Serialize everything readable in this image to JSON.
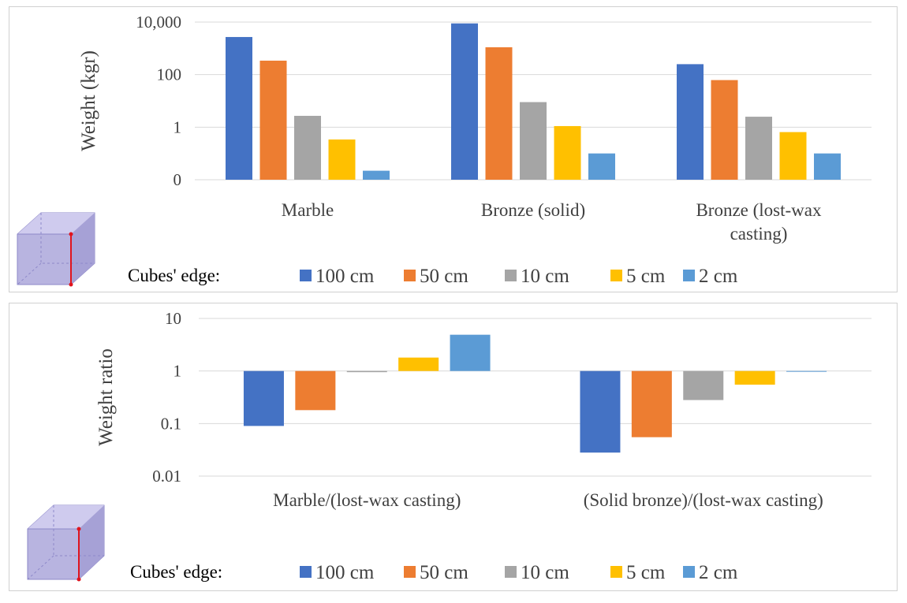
{
  "chart_data": [
    {
      "type": "bar",
      "scale": "log",
      "title": "",
      "xlabel": "",
      "ylabel": "Weight (kgr)",
      "ylim": [
        0.01,
        10000
      ],
      "yticks": [
        {
          "value": 0.01,
          "label": "0"
        },
        {
          "value": 1,
          "label": "1"
        },
        {
          "value": 100,
          "label": "100"
        },
        {
          "value": 10000,
          "label": "10,000"
        }
      ],
      "categories": [
        "Marble",
        "Bronze (solid)",
        "Bronze (lost-wax casting)"
      ],
      "category_lines": [
        [
          "Marble"
        ],
        [
          "Bronze (solid)"
        ],
        [
          "Bronze (lost-wax",
          "casting)"
        ]
      ],
      "series": [
        {
          "name": "100 cm",
          "color": "#4472C4",
          "values": [
            2700,
            8900,
            250
          ]
        },
        {
          "name": "50 cm",
          "color": "#ED7D31",
          "values": [
            340,
            1100,
            62
          ]
        },
        {
          "name": "10 cm",
          "color": "#A5A5A5",
          "values": [
            2.7,
            9,
            2.5
          ]
        },
        {
          "name": "5 cm",
          "color": "#FFC000",
          "values": [
            0.34,
            1.1,
            0.65
          ]
        },
        {
          "name": "2 cm",
          "color": "#5B9BD5",
          "values": [
            0.022,
            0.1,
            0.1
          ]
        }
      ],
      "legend_title": "Cubes' edge:",
      "legend_position": "bottom"
    },
    {
      "type": "bar",
      "scale": "log",
      "title": "",
      "xlabel": "",
      "ylabel": "Weight ratio",
      "ylim": [
        0.01,
        10
      ],
      "yticks": [
        {
          "value": 0.01,
          "label": "0.01"
        },
        {
          "value": 0.1,
          "label": "0.1"
        },
        {
          "value": 1,
          "label": "1"
        },
        {
          "value": 10,
          "label": "10"
        }
      ],
      "categories": [
        "Marble/(lost-wax casting)",
        "(Solid bronze)/(lost-wax casting)"
      ],
      "category_lines": [
        [
          "Marble/(lost-wax casting)"
        ],
        [
          "(Solid bronze)/(lost-wax casting)"
        ]
      ],
      "series": [
        {
          "name": "100 cm",
          "color": "#4472C4",
          "values": [
            0.09,
            0.028
          ]
        },
        {
          "name": "50 cm",
          "color": "#ED7D31",
          "values": [
            0.18,
            0.055
          ]
        },
        {
          "name": "10 cm",
          "color": "#A5A5A5",
          "values": [
            0.95,
            0.28
          ]
        },
        {
          "name": "5 cm",
          "color": "#FFC000",
          "values": [
            1.8,
            0.55
          ]
        },
        {
          "name": "2 cm",
          "color": "#5B9BD5",
          "values": [
            4.9,
            1.0
          ]
        }
      ],
      "legend_title": "Cubes' edge:",
      "legend_position": "bottom"
    }
  ]
}
